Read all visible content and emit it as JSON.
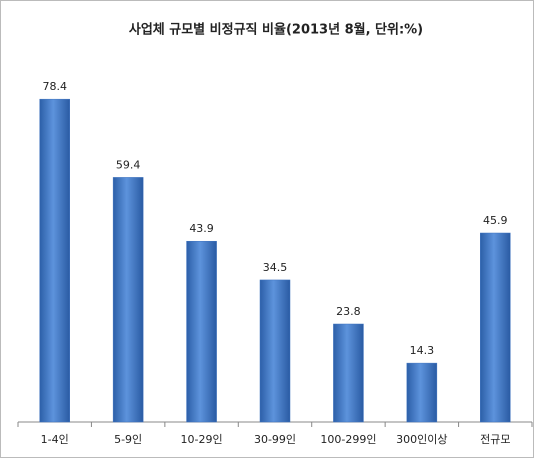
{
  "chart_data": {
    "type": "bar",
    "title": "사업체 규모별 비정규직 비율(2013년 8월, 단위:%)",
    "categories": [
      "1-4인",
      "5-9인",
      "10-29인",
      "30-99인",
      "100-299인",
      "300인이상",
      "전규모"
    ],
    "values": [
      78.4,
      59.4,
      43.9,
      34.5,
      23.8,
      14.3,
      45.9
    ],
    "color": "#3f73bf",
    "ylim": [
      0,
      85
    ]
  }
}
